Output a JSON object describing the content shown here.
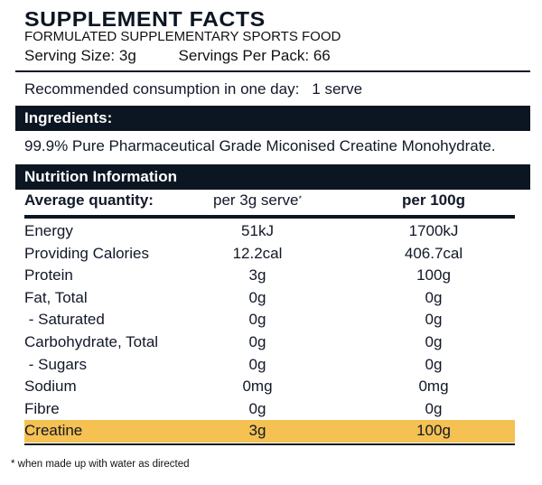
{
  "title": "SUPPLEMENT FACTS",
  "subtitle": "FORMULATED SUPPLEMENTARY SPORTS FOOD",
  "serving": {
    "size": "Serving Size: 3g",
    "per_pack": "Servings Per Pack: 66"
  },
  "recommended": {
    "label": "Recommended consumption in one day:",
    "value": "1 serve"
  },
  "ingredients": {
    "heading": "Ingredients:",
    "text": "99.9% Pure Pharmaceutical Grade Miconised Creatine Monohydrate."
  },
  "nutrition": {
    "heading": "Nutrition Information",
    "col_label": "Average quantity:",
    "col1": "per 3g serve",
    "col1_mark": "*",
    "col2": "per 100g",
    "rows": [
      {
        "label": "Energy",
        "v1": "51kJ",
        "v2": "1700kJ"
      },
      {
        "label": "Providing Calories",
        "v1": "12.2cal",
        "v2": "406.7cal"
      },
      {
        "label": "Protein",
        "v1": "3g",
        "v2": "100g"
      },
      {
        "label": "Fat, Total",
        "v1": "0g",
        "v2": "0g"
      },
      {
        "label": " - Saturated",
        "v1": "0g",
        "v2": "0g"
      },
      {
        "label": "Carbohydrate, Total",
        "v1": "0g",
        "v2": "0g"
      },
      {
        "label": " - Sugars",
        "v1": "0g",
        "v2": "0g"
      },
      {
        "label": "Sodium",
        "v1": "0mg",
        "v2": "0mg"
      },
      {
        "label": "Fibre",
        "v1": "0g",
        "v2": "0g"
      },
      {
        "label": "Creatine",
        "v1": "3g",
        "v2": "100g"
      }
    ]
  },
  "footnote": "* when made up with water as directed",
  "colors": {
    "dark": "#0b1622",
    "highlight": "#f4c152"
  }
}
